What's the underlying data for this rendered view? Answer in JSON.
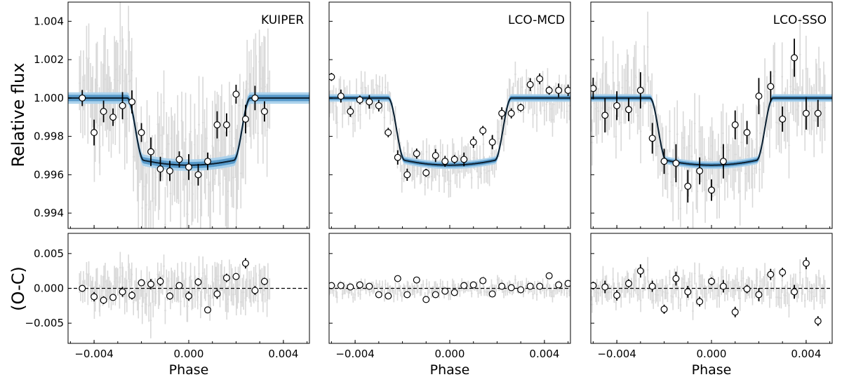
{
  "chart_data": {
    "type": "scatter",
    "description_panels": [
      "KUIPER",
      "LCO-MCD",
      "LCO-SSO"
    ],
    "top_ylabel": "Relative flux",
    "bottom_ylabel": "(O-C)",
    "xlabel": "Phase",
    "xlim": [
      -0.0051,
      0.0051
    ],
    "top_ylim": [
      0.9932,
      1.005
    ],
    "bottom_ylim": [
      -0.0079,
      0.0079
    ],
    "x_ticks": [
      -0.004,
      0.0,
      0.004
    ],
    "x_tick_labels": [
      "−0.004",
      "0.000",
      "0.004"
    ],
    "top_y_ticks": [
      0.994,
      0.996,
      0.998,
      1.0,
      1.002,
      1.004
    ],
    "top_y_tick_labels": [
      "0.994",
      "0.996",
      "0.998",
      "1.000",
      "1.002",
      "1.004"
    ],
    "bottom_y_ticks": [
      -0.005,
      0.0,
      0.005
    ],
    "bottom_y_tick_labels": [
      "−0.005",
      "0.000",
      "0.005"
    ],
    "model": {
      "baseline": 1.0,
      "depth": 0.00325,
      "ingress_start": -0.0026,
      "ingress_end": -0.0019,
      "egress_start": 0.0019,
      "egress_end": 0.0026,
      "band_halfwidth": [
        0.0003,
        0.0002,
        0.0002
      ]
    },
    "colors": {
      "raw": "#d9d9d9",
      "band_outer": "#a9d1ec",
      "band_inner": "#4f93c7",
      "model": "#0b1e2e",
      "binned_edge": "#000000",
      "binned_fill": "#ffffff",
      "zero_line": "#000000"
    },
    "panels": [
      {
        "name": "KUIPER",
        "raw_x_range": [
          -0.0046,
          0.0034
        ],
        "raw_scatter": 0.0017,
        "binned_err": 0.0006,
        "binned": {
          "x": [
            -0.0045,
            -0.004,
            -0.0036,
            -0.0032,
            -0.0028,
            -0.0024,
            -0.002,
            -0.0016,
            -0.0012,
            -0.0008,
            -0.0004,
            0.0,
            0.0004,
            0.0008,
            0.0012,
            0.0016,
            0.002,
            0.0024,
            0.0028,
            0.0032
          ],
          "y": [
            1.0,
            0.9982,
            0.9993,
            0.999,
            0.9996,
            0.9998,
            0.9982,
            0.9972,
            0.9963,
            0.9962,
            0.9968,
            0.9964,
            0.996,
            0.9967,
            0.9986,
            0.9986,
            1.0002,
            0.9989,
            1.0,
            0.9993
          ],
          "resid": [
            0.0,
            -0.0012,
            -0.0017,
            -0.0013,
            -0.0005,
            -0.001,
            0.0008,
            0.0006,
            0.001,
            -0.0011,
            0.0004,
            -0.0011,
            0.0009,
            -0.0031,
            -0.0008,
            0.0015,
            0.0017,
            0.0036,
            -0.0003,
            0.001
          ]
        }
      },
      {
        "name": "LCO-MCD",
        "raw_x_range": [
          -0.0051,
          0.0051
        ],
        "raw_scatter": 0.0006,
        "binned_err": 0.0003,
        "binned": {
          "x": [
            -0.005,
            -0.0046,
            -0.0042,
            -0.0038,
            -0.0034,
            -0.003,
            -0.0026,
            -0.0022,
            -0.0018,
            -0.0014,
            -0.001,
            -0.0006,
            -0.0002,
            0.0002,
            0.0006,
            0.001,
            0.0014,
            0.0018,
            0.0022,
            0.0026,
            0.003,
            0.0034,
            0.0038,
            0.0042,
            0.0046,
            0.005
          ],
          "y": [
            1.0011,
            1.0001,
            0.9993,
            0.9999,
            0.9998,
            0.9996,
            0.9982,
            0.9969,
            0.996,
            0.9971,
            0.9961,
            0.997,
            0.9967,
            0.9968,
            0.9968,
            0.9977,
            0.9983,
            0.9977,
            0.9992,
            0.9992,
            0.9995,
            1.0007,
            1.001,
            1.0004,
            1.0004,
            1.0004
          ],
          "resid": [
            0.0004,
            0.0004,
            0.0002,
            0.0005,
            0.0003,
            -0.0009,
            -0.0011,
            0.0014,
            -0.0009,
            0.0012,
            -0.0016,
            -0.0009,
            -0.0004,
            -0.0006,
            0.0004,
            0.0005,
            0.0011,
            -0.0008,
            0.0003,
            0.0001,
            -0.0002,
            0.0003,
            0.0003,
            0.0018,
            0.0005,
            0.0007
          ]
        }
      },
      {
        "name": "LCO-SSO",
        "raw_x_range": [
          -0.0051,
          0.0048
        ],
        "raw_scatter": 0.0012,
        "binned_err": 0.0008,
        "binned": {
          "x": [
            -0.005,
            -0.0045,
            -0.004,
            -0.0035,
            -0.003,
            -0.0025,
            -0.002,
            -0.0015,
            -0.001,
            -0.0005,
            0.0,
            0.0005,
            0.001,
            0.0015,
            0.002,
            0.0025,
            0.003,
            0.0035,
            0.004,
            0.0045
          ],
          "y": [
            1.0005,
            0.9991,
            0.9996,
            0.9994,
            1.0004,
            0.9979,
            0.9967,
            0.9966,
            0.9954,
            0.9962,
            0.9952,
            0.9967,
            0.9986,
            0.9982,
            1.0001,
            1.0006,
            0.9989,
            1.0021,
            0.9992,
            0.9992
          ],
          "resid": [
            0.0004,
            0.0002,
            -0.001,
            0.0007,
            0.0025,
            0.0003,
            -0.003,
            0.0014,
            -0.0005,
            -0.0019,
            0.001,
            0.0003,
            -0.0034,
            -0.0001,
            -0.0009,
            0.002,
            0.0023,
            -0.0005,
            0.0036,
            -0.0047
          ]
        }
      }
    ]
  }
}
